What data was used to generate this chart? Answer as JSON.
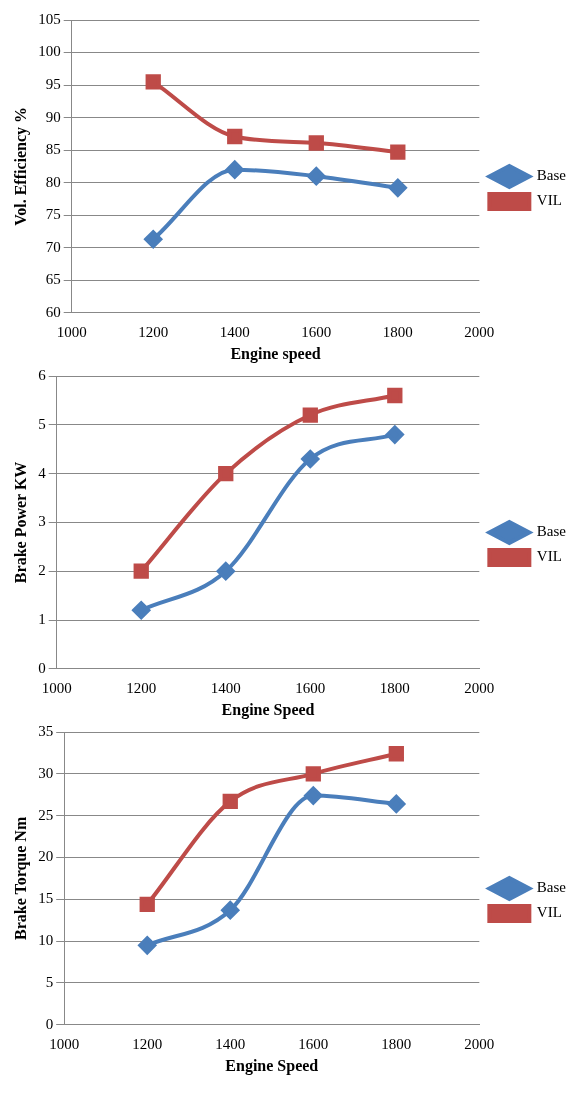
{
  "chart_data": [
    {
      "type": "line",
      "xlabel": "Engine speed",
      "ylabel": "Vol. Efficiency %",
      "x": [
        1200,
        1400,
        1600,
        1800
      ],
      "xlim": [
        1000,
        2000
      ],
      "xticks": [
        1000,
        1200,
        1400,
        1600,
        1800,
        2000
      ],
      "ylim": [
        60,
        105
      ],
      "yticks": [
        60,
        65,
        70,
        75,
        80,
        85,
        90,
        95,
        100,
        105
      ],
      "grid": "y",
      "legend": "right",
      "series": [
        {
          "name": "Base",
          "color": "#4a7ebb",
          "marker": "diamond",
          "values": [
            71.3,
            82,
            81,
            79.2
          ]
        },
        {
          "name": "VIL",
          "color": "#be4b48",
          "marker": "square",
          "values": [
            95.5,
            87.1,
            86.1,
            84.7
          ]
        }
      ]
    },
    {
      "type": "line",
      "xlabel": "Engine Speed",
      "ylabel": "Brake Power KW",
      "x": [
        1200,
        1400,
        1600,
        1800
      ],
      "xlim": [
        1000,
        2000
      ],
      "xticks": [
        1000,
        1200,
        1400,
        1600,
        1800,
        2000
      ],
      "ylim": [
        0,
        6
      ],
      "yticks": [
        0,
        1,
        2,
        3,
        4,
        5,
        6
      ],
      "grid": "y",
      "legend": "right",
      "series": [
        {
          "name": "Base",
          "color": "#4a7ebb",
          "marker": "diamond",
          "values": [
            1.2,
            2.0,
            4.3,
            4.8
          ]
        },
        {
          "name": "VIL",
          "color": "#be4b48",
          "marker": "square",
          "values": [
            2.0,
            4.0,
            5.2,
            5.6
          ]
        }
      ]
    },
    {
      "type": "line",
      "xlabel": "Engine Speed",
      "ylabel": "Brake Torque Nm",
      "x": [
        1200,
        1400,
        1600,
        1800
      ],
      "xlim": [
        1000,
        2000
      ],
      "xticks": [
        1000,
        1200,
        1400,
        1600,
        1800,
        2000
      ],
      "ylim": [
        0,
        35
      ],
      "yticks": [
        0,
        5,
        10,
        15,
        20,
        25,
        30,
        35
      ],
      "grid": "y",
      "legend": "right",
      "series": [
        {
          "name": "Base",
          "color": "#4a7ebb",
          "marker": "diamond",
          "values": [
            9.5,
            13.7,
            27.4,
            26.4
          ]
        },
        {
          "name": "VIL",
          "color": "#be4b48",
          "marker": "square",
          "values": [
            14.4,
            26.7,
            30.0,
            32.4
          ]
        }
      ]
    }
  ]
}
